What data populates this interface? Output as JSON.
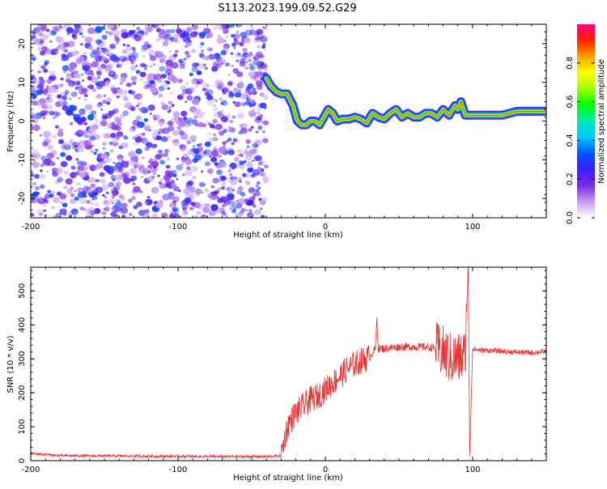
{
  "title": "S113.2023.199.09.52.G29",
  "chart_data": [
    {
      "type": "heatmap",
      "xlabel": "Height of straight line (km)",
      "ylabel": "Frequency (Hz)",
      "xlim": [
        -200,
        150
      ],
      "ylim": [
        -25,
        25
      ],
      "x_ticks": [
        -200,
        -100,
        0,
        100
      ],
      "y_ticks": [
        -20,
        -10,
        0,
        10,
        20
      ],
      "noise_region_x": [
        -200,
        -40
      ],
      "ridge": {
        "x": [
          -40,
          -37,
          -33,
          -30,
          -26,
          -22,
          -19,
          -16,
          -13,
          -10,
          -7,
          -4,
          -1,
          2,
          5,
          8,
          12,
          16,
          20,
          24,
          28,
          32,
          36,
          40,
          44,
          48,
          52,
          56,
          60,
          64,
          68,
          72,
          76,
          80,
          84,
          88,
          90,
          92,
          95,
          100,
          110,
          120,
          130,
          140,
          150
        ],
        "y": [
          11,
          9,
          7.5,
          7,
          7,
          4,
          0,
          -1,
          -1,
          0,
          0,
          -1,
          1,
          3,
          2,
          0,
          0.5,
          0.5,
          1,
          0.5,
          -0.5,
          2,
          1,
          0.5,
          2,
          3,
          1,
          2,
          1,
          1,
          2,
          2,
          1,
          3,
          1.5,
          4,
          3,
          5,
          1.5,
          1.5,
          1.5,
          1.5,
          2.5,
          2.5,
          2.5
        ]
      },
      "colorbar": {
        "label": "Normalized spectral amplitude",
        "range": [
          0,
          1
        ],
        "ticks": [
          0.0,
          0.2,
          0.4,
          0.6,
          0.8
        ],
        "tick_labels": [
          "0.0",
          "0.2",
          "0.4",
          "0.6",
          "0.8"
        ],
        "colors": [
          "#ffffff",
          "#c59cf0",
          "#7a2ce6",
          "#3a1cff",
          "#0055ff",
          "#00c8ff",
          "#00e8b0",
          "#00ff00",
          "#a0ff00",
          "#ffff00",
          "#ffa000",
          "#ff2000",
          "#ff0080"
        ]
      }
    },
    {
      "type": "line",
      "xlabel": "Height of straight line (km)",
      "ylabel": "SNR (10 * v/v)",
      "xlim": [
        -200,
        150
      ],
      "ylim": [
        0,
        570
      ],
      "x_ticks": [
        -200,
        -100,
        0,
        100
      ],
      "y_ticks": [
        0,
        100,
        200,
        300,
        400,
        500
      ],
      "line_color": "#e83030",
      "series": [
        {
          "x": [
            -200,
            -190,
            -180,
            -160,
            -140,
            -120,
            -100,
            -80,
            -60,
            -40,
            -30,
            -28,
            -25,
            -20,
            -15,
            -10,
            -5,
            0,
            5,
            10,
            15,
            20,
            25,
            30,
            34,
            35,
            36,
            40,
            50,
            60,
            70,
            75,
            80,
            85,
            90,
            95,
            97,
            98,
            100,
            105,
            110,
            120,
            130,
            140,
            150
          ],
          "y": [
            22,
            18,
            15,
            14,
            14,
            13,
            13,
            12,
            12,
            12,
            14,
            60,
            110,
            140,
            160,
            180,
            190,
            210,
            230,
            250,
            270,
            285,
            295,
            305,
            330,
            420,
            330,
            330,
            335,
            335,
            335,
            330,
            320,
            300,
            300,
            310,
            580,
            15,
            330,
            325,
            325,
            322,
            320,
            318,
            322
          ]
        }
      ]
    }
  ]
}
